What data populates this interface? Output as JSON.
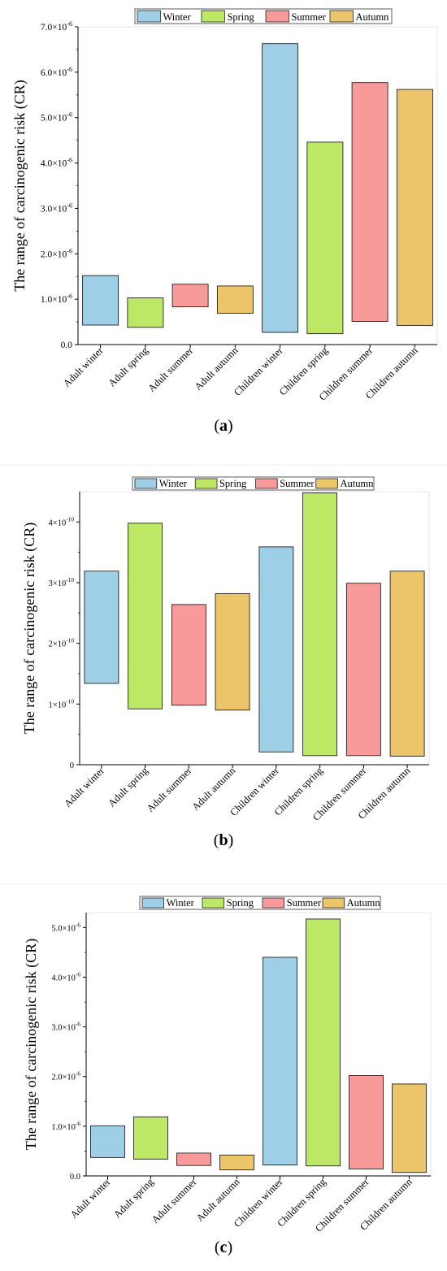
{
  "panels": [
    {
      "caption": "(a)"
    },
    {
      "caption": "(b)"
    },
    {
      "caption": "(c)"
    }
  ],
  "legend": {
    "items": [
      {
        "label": "Winter",
        "color": "#9ecfe6"
      },
      {
        "label": "Spring",
        "color": "#bde866"
      },
      {
        "label": "Summer",
        "color": "#f89a9a"
      },
      {
        "label": "Autumn",
        "color": "#ecc46a"
      }
    ]
  },
  "chart_data": [
    {
      "type": "bar",
      "subtype": "floating-range",
      "ylabel": "The range of carcinogenic risk (CR)",
      "categories": [
        "Adult winter",
        "Adult spring",
        "Adult summer",
        "Adult autumn",
        "Children winter",
        "Children spring",
        "Children summer",
        "Children autumn"
      ],
      "season_index": [
        0,
        1,
        2,
        3,
        0,
        1,
        2,
        3
      ],
      "ranges": [
        [
          0.43,
          1.52
        ],
        [
          0.38,
          1.03
        ],
        [
          0.83,
          1.33
        ],
        [
          0.69,
          1.29
        ],
        [
          0.27,
          6.63
        ],
        [
          0.24,
          4.46
        ],
        [
          0.51,
          5.77
        ],
        [
          0.42,
          5.62
        ]
      ],
      "unit_exp": -6,
      "ylim": [
        0,
        7
      ],
      "ticks": [
        {
          "v": 0,
          "m": "0.0",
          "e": ""
        },
        {
          "v": 1,
          "m": "1.0×10",
          "e": "-6"
        },
        {
          "v": 2,
          "m": "2.0×10",
          "e": "-6"
        },
        {
          "v": 3,
          "m": "3.0×10",
          "e": "-6"
        },
        {
          "v": 4,
          "m": "4.0×10",
          "e": "-6"
        },
        {
          "v": 5,
          "m": "5.0×10",
          "e": "-6"
        },
        {
          "v": 6,
          "m": "6.0×10",
          "e": "-6"
        },
        {
          "v": 7,
          "m": "7.0×10",
          "e": "-6"
        }
      ]
    },
    {
      "type": "bar",
      "subtype": "floating-range",
      "ylabel": "The range of carcinogenic risk (CR)",
      "categories": [
        "Adult winter",
        "Adult spring",
        "Adult summer",
        "Adult autumn",
        "Children winter",
        "Children spring",
        "Children summer",
        "Children autumn"
      ],
      "season_index": [
        0,
        1,
        2,
        3,
        0,
        1,
        2,
        3
      ],
      "ranges": [
        [
          1.34,
          3.19
        ],
        [
          0.92,
          3.98
        ],
        [
          0.98,
          2.64
        ],
        [
          0.9,
          2.82
        ],
        [
          0.21,
          3.59
        ],
        [
          0.15,
          4.48
        ],
        [
          0.15,
          2.99
        ],
        [
          0.14,
          3.19
        ]
      ],
      "unit_exp": -10,
      "ylim": [
        0,
        4.5
      ],
      "ticks": [
        {
          "v": 0,
          "m": "0",
          "e": ""
        },
        {
          "v": 1,
          "m": "1×10",
          "e": "-10"
        },
        {
          "v": 2,
          "m": "2×10",
          "e": "-10"
        },
        {
          "v": 3,
          "m": "3×10",
          "e": "-10"
        },
        {
          "v": 4,
          "m": "4×10",
          "e": "-10"
        }
      ]
    },
    {
      "type": "bar",
      "subtype": "floating-range",
      "ylabel": "The range of carcinogenic risk (CR)",
      "categories": [
        "Adult winter",
        "Adult spring",
        "Adult summer",
        "Adult autumn",
        "Children winter",
        "Children spring",
        "Children summer",
        "Children autumn"
      ],
      "season_index": [
        0,
        1,
        2,
        3,
        0,
        1,
        2,
        3
      ],
      "ranges": [
        [
          0.37,
          1.01
        ],
        [
          0.34,
          1.19
        ],
        [
          0.21,
          0.46
        ],
        [
          0.12,
          0.42
        ],
        [
          0.22,
          4.4
        ],
        [
          0.2,
          5.17
        ],
        [
          0.14,
          2.02
        ],
        [
          0.07,
          1.85
        ]
      ],
      "unit_exp": -6,
      "ylim": [
        0,
        5.3
      ],
      "ticks": [
        {
          "v": 0,
          "m": "0.0",
          "e": ""
        },
        {
          "v": 1,
          "m": "1.0×10",
          "e": "-6"
        },
        {
          "v": 2,
          "m": "2.0×10",
          "e": "-6"
        },
        {
          "v": 3,
          "m": "3.0×10",
          "e": "-6"
        },
        {
          "v": 4,
          "m": "4.0×10",
          "e": "-6"
        },
        {
          "v": 5,
          "m": "5.0×10",
          "e": "-6"
        }
      ]
    }
  ]
}
